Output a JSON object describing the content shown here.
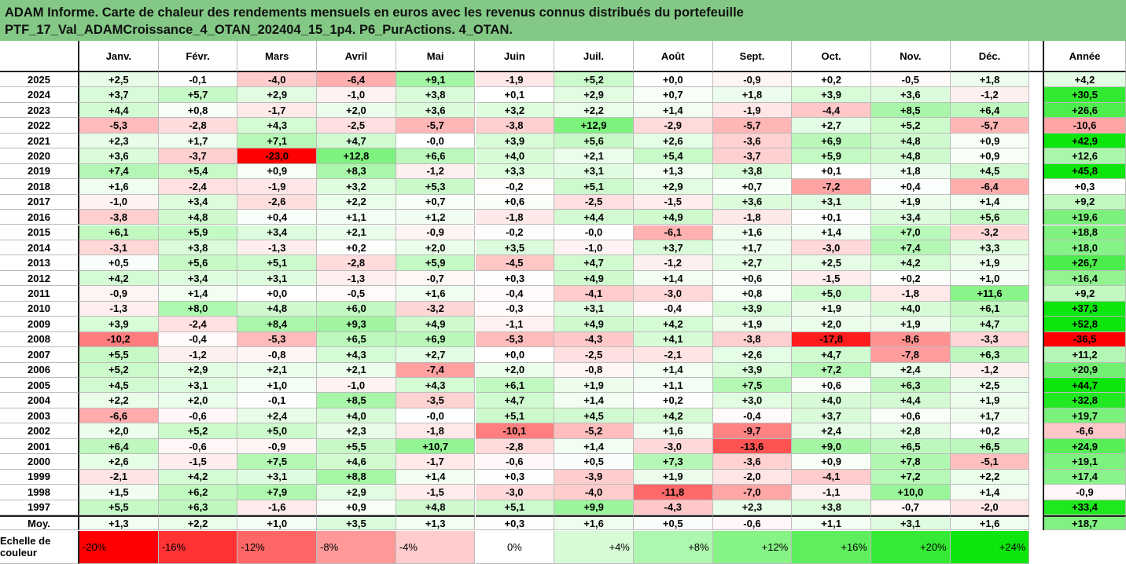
{
  "title": [
    "ADAM Informe. Carte de chaleur des rendements mensuels en euros avec les revenus connus distribués du portefeuille",
    "PTF_17_Val_ADAMCroissance_4_OTAN_202404_15_1p4. P6_PurActions. 4_OTAN."
  ],
  "table": {
    "columns": [
      "Janv.",
      "Févr.",
      "Mars",
      "Avril",
      "Mai",
      "Juin",
      "Juil.",
      "Août",
      "Sept.",
      "Oct.",
      "Nov.",
      "Déc.",
      "Année"
    ],
    "rows": [
      [
        "2025",
        "+2,5",
        "-0,1",
        "-4,0",
        "-6,4",
        "+9,1",
        "-1,9",
        "+5,2",
        "+0,0",
        "-0,9",
        "+0,2",
        "-0,5",
        "+1,8",
        "+4,2"
      ],
      [
        "2024",
        "+3,7",
        "+5,7",
        "+2,9",
        "-1,0",
        "+3,8",
        "+0,1",
        "+2,9",
        "+0,7",
        "+1,8",
        "+3,9",
        "+3,6",
        "-1,2",
        "+30,5"
      ],
      [
        "2023",
        "+4,4",
        "+0,8",
        "-1,7",
        "+2,0",
        "+3,6",
        "+3,2",
        "+2,2",
        "+1,4",
        "-1,9",
        "-4,4",
        "+8,5",
        "+6,4",
        "+26,6"
      ],
      [
        "2022",
        "-5,3",
        "-2,8",
        "+4,3",
        "-2,5",
        "-5,7",
        "-3,8",
        "+12,9",
        "-2,9",
        "-5,7",
        "+2,7",
        "+5,2",
        "-5,7",
        "-10,6"
      ],
      [
        "2021",
        "+2,3",
        "+1,7",
        "+7,1",
        "+4,7",
        "-0,0",
        "+3,9",
        "+5,6",
        "+2,6",
        "-3,6",
        "+6,9",
        "+4,8",
        "+0,9",
        "+42,9"
      ],
      [
        "2020",
        "+3,6",
        "-3,7",
        "-23,0",
        "+12,8",
        "+6,6",
        "+4,0",
        "+2,1",
        "+5,4",
        "-3,7",
        "+5,9",
        "+4,8",
        "+0,9",
        "+12,6"
      ],
      [
        "2019",
        "+7,4",
        "+5,4",
        "+0,9",
        "+8,3",
        "-1,2",
        "+3,3",
        "+3,1",
        "+1,3",
        "+3,8",
        "+0,1",
        "+1,8",
        "+4,5",
        "+45,8"
      ],
      [
        "2018",
        "+1,6",
        "-2,4",
        "-1,9",
        "+3,2",
        "+5,3",
        "-0,2",
        "+5,1",
        "+2,9",
        "+0,7",
        "-7,2",
        "+0,4",
        "-6,4",
        "+0,3"
      ],
      [
        "2017",
        "-1,0",
        "+3,4",
        "-2,6",
        "+2,2",
        "+0,7",
        "+0,6",
        "-2,5",
        "-1,5",
        "+3,6",
        "+3,1",
        "+1,9",
        "+1,4",
        "+9,2"
      ],
      [
        "2016",
        "-3,8",
        "+4,8",
        "+0,4",
        "+1,1",
        "+1,2",
        "-1,8",
        "+4,4",
        "+4,9",
        "-1,8",
        "+0,1",
        "+3,4",
        "+5,6",
        "+19,6"
      ],
      [
        "2015",
        "+6,1",
        "+5,9",
        "+3,4",
        "+2,1",
        "-0,9",
        "-0,2",
        "-0,0",
        "-6,1",
        "+1,6",
        "+1,4",
        "+7,0",
        "-3,2",
        "+18,8"
      ],
      [
        "2014",
        "-3,1",
        "+3,8",
        "-1,3",
        "+0,2",
        "+2,0",
        "+3,5",
        "-1,0",
        "+3,7",
        "+1,7",
        "-3,0",
        "+7,4",
        "+3,3",
        "+18,0"
      ],
      [
        "2013",
        "+0,5",
        "+5,6",
        "+5,1",
        "-2,8",
        "+5,9",
        "-4,5",
        "+4,7",
        "-1,2",
        "+2,7",
        "+2,5",
        "+4,2",
        "+1,9",
        "+26,7"
      ],
      [
        "2012",
        "+4,2",
        "+3,4",
        "+3,1",
        "-1,3",
        "-0,7",
        "+0,3",
        "+4,9",
        "+1,4",
        "+0,6",
        "-1,5",
        "+0,2",
        "+1,0",
        "+16,4"
      ],
      [
        "2011",
        "-0,9",
        "+1,4",
        "+0,0",
        "-0,5",
        "+1,6",
        "-0,4",
        "-4,1",
        "-3,0",
        "+0,8",
        "+5,0",
        "-1,8",
        "+11,6",
        "+9,2"
      ],
      [
        "2010",
        "-1,3",
        "+8,0",
        "+4,8",
        "+6,0",
        "-3,2",
        "-0,3",
        "+3,1",
        "-0,4",
        "+3,9",
        "+1,9",
        "+4,0",
        "+6,1",
        "+37,3"
      ],
      [
        "2009",
        "+3,9",
        "-2,4",
        "+8,4",
        "+9,3",
        "+4,9",
        "-1,1",
        "+4,9",
        "+4,2",
        "+1,9",
        "+2,0",
        "+1,9",
        "+4,7",
        "+52,8"
      ],
      [
        "2008",
        "-10,2",
        "-0,4",
        "-5,3",
        "+6,5",
        "+6,9",
        "-5,3",
        "-4,3",
        "+4,1",
        "-3,8",
        "-17,8",
        "-8,6",
        "-3,3",
        "-36,5"
      ],
      [
        "2007",
        "+5,5",
        "-1,2",
        "-0,8",
        "+4,3",
        "+2,7",
        "+0,0",
        "-2,5",
        "-2,1",
        "+2,6",
        "+4,7",
        "-7,8",
        "+6,3",
        "+11,2"
      ],
      [
        "2006",
        "+5,2",
        "+2,9",
        "+2,1",
        "+2,1",
        "-7,4",
        "+2,0",
        "-0,8",
        "+1,4",
        "+3,9",
        "+7,2",
        "+2,4",
        "-1,2",
        "+20,9"
      ],
      [
        "2005",
        "+4,5",
        "+3,1",
        "+1,0",
        "-1,0",
        "+4,3",
        "+6,1",
        "+1,9",
        "+1,1",
        "+7,5",
        "+0,6",
        "+6,3",
        "+2,5",
        "+44,7"
      ],
      [
        "2004",
        "+2,2",
        "+2,0",
        "-0,1",
        "+8,5",
        "-3,5",
        "+4,7",
        "+1,4",
        "+0,2",
        "+3,0",
        "+4,0",
        "+4,4",
        "+1,9",
        "+32,8"
      ],
      [
        "2003",
        "-6,6",
        "-0,6",
        "+2,4",
        "+4,0",
        "-0,0",
        "+5,1",
        "+4,5",
        "+4,2",
        "-0,4",
        "+3,7",
        "+0,6",
        "+1,7",
        "+19,7"
      ],
      [
        "2002",
        "+2,0",
        "+5,2",
        "+5,0",
        "+2,3",
        "-1,8",
        "-10,1",
        "-5,2",
        "+1,6",
        "-9,7",
        "+2,4",
        "+2,8",
        "+0,2",
        "-6,6"
      ],
      [
        "2001",
        "+6,4",
        "-0,6",
        "-0,9",
        "+5,5",
        "+10,7",
        "-2,8",
        "+1,4",
        "-3,0",
        "-13,6",
        "+9,0",
        "+6,5",
        "+6,5",
        "+24,9"
      ],
      [
        "2000",
        "+2,6",
        "-1,5",
        "+7,5",
        "+4,6",
        "-1,7",
        "-0,6",
        "+0,5",
        "+7,3",
        "-3,6",
        "+0,9",
        "+7,8",
        "-5,1",
        "+19,1"
      ],
      [
        "1999",
        "-2,1",
        "+4,2",
        "+3,1",
        "+8,8",
        "+1,4",
        "+0,3",
        "-3,9",
        "+1,9",
        "-2,0",
        "-4,1",
        "+7,2",
        "+2,2",
        "+17,4"
      ],
      [
        "1998",
        "+1,5",
        "+6,2",
        "+7,9",
        "+2,9",
        "-1,5",
        "-3,0",
        "-4,0",
        "-11,8",
        "-7,0",
        "-1,1",
        "+10,0",
        "+1,4",
        "-0,9"
      ],
      [
        "1997",
        "+5,5",
        "+6,3",
        "-1,6",
        "+0,9",
        "+4,8",
        "+5,1",
        "+9,9",
        "-4,3",
        "+2,3",
        "+3,8",
        "-0,7",
        "-2,0",
        "+33,4"
      ],
      [
        "Moy.",
        "+1,3",
        "+2,2",
        "+1,0",
        "+3,5",
        "+1,3",
        "+0,3",
        "+1,6",
        "+0,5",
        "-0,6",
        "+1,1",
        "+3,1",
        "+1,6",
        "+18,7"
      ]
    ],
    "scale_label": "Echelle de couleur",
    "scale": [
      "-20%",
      "-16%",
      "-12%",
      "-8%",
      "-4%",
      "0%",
      "+4%",
      "+8%",
      "+12%",
      "+16%",
      "+20%",
      "+24%"
    ]
  }
}
